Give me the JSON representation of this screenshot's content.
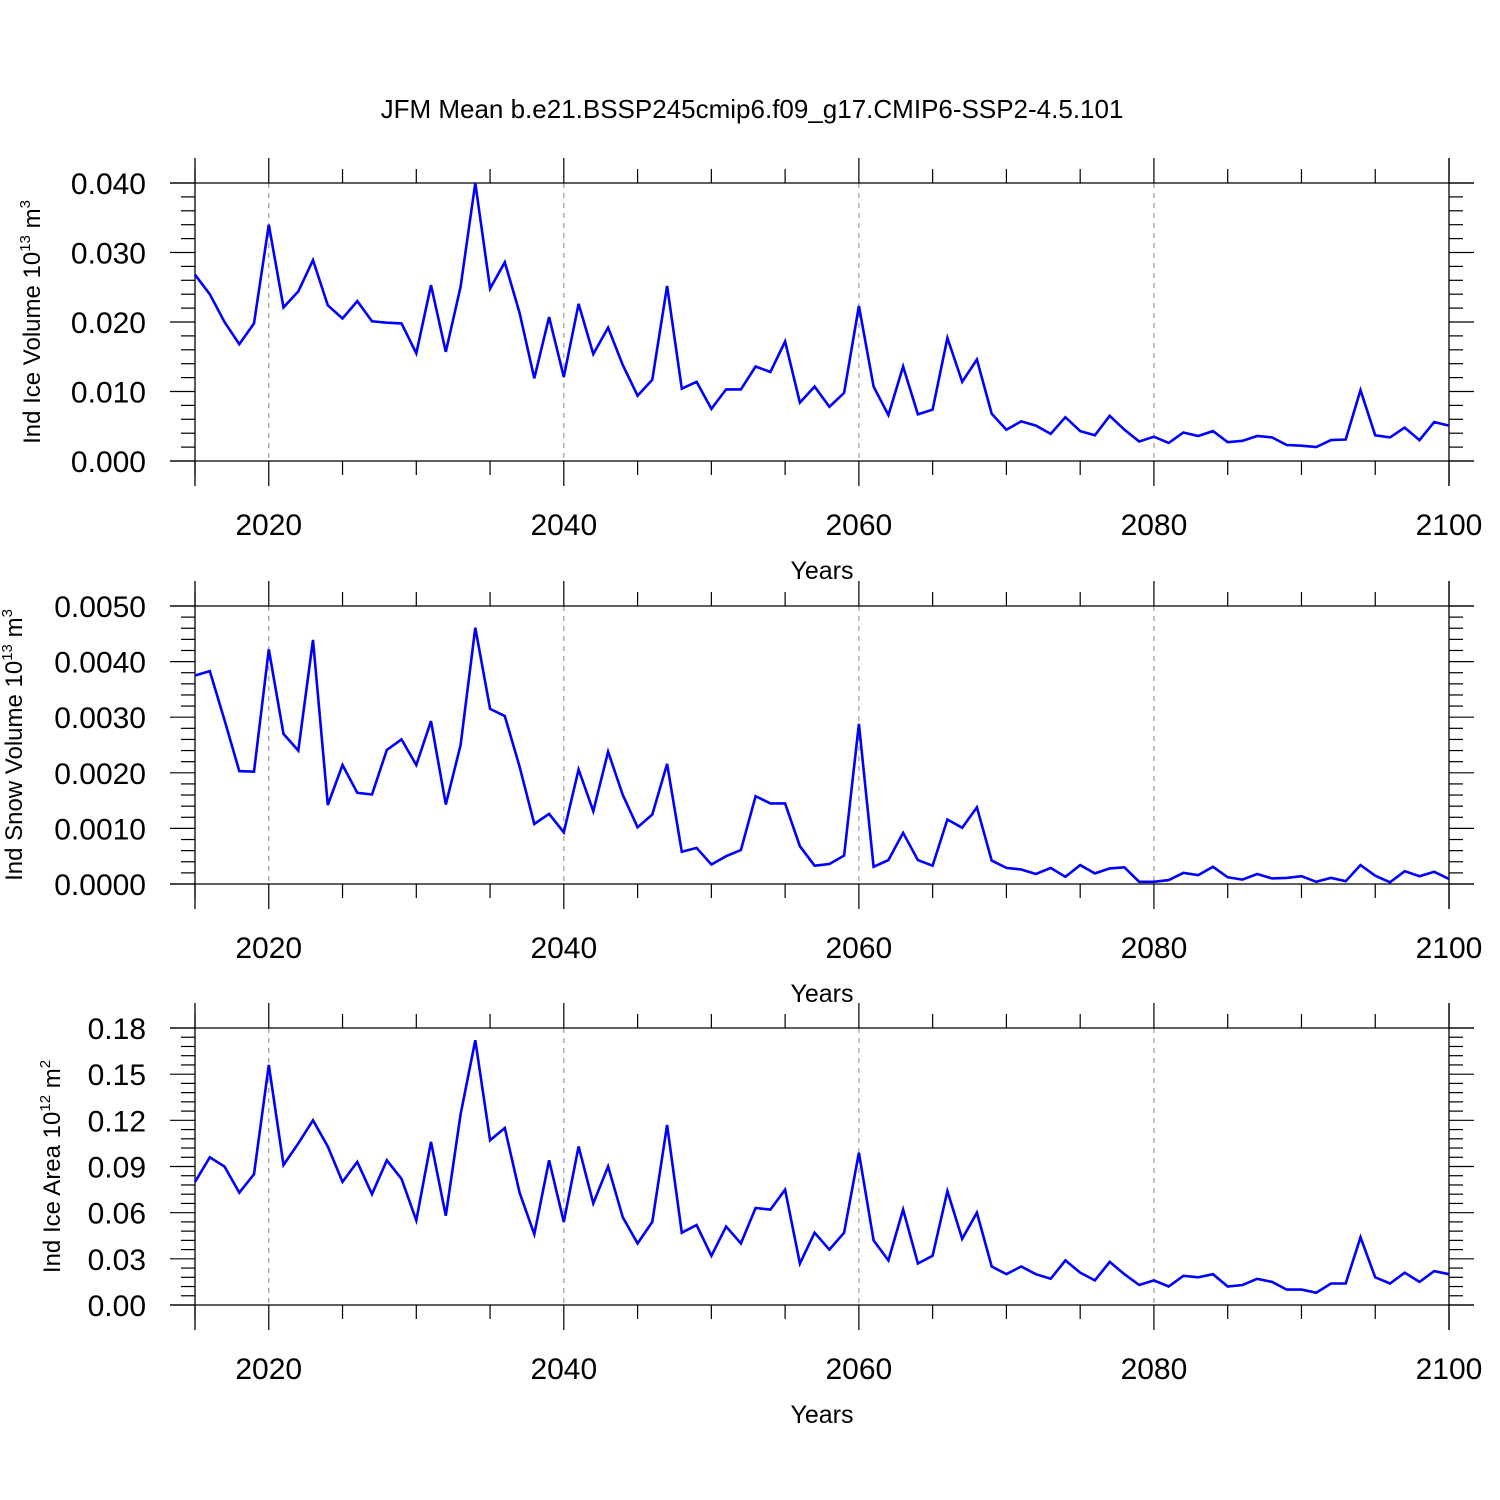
{
  "title": "JFM Mean b.e21.BSSP245cmip6.f09_g17.CMIP6-SSP2-4.5.101",
  "colors": {
    "line": "#0000ff",
    "axis": "#000000",
    "grid": "#999999"
  },
  "chart_data": [
    {
      "type": "line",
      "xlabel": "Years",
      "ylabel": {
        "text": "Ind Ice Volume 10",
        "sup": "13",
        "unit": " m",
        "unit_sup": "3"
      },
      "xlim": [
        2015,
        2100
      ],
      "ylim": [
        0,
        0.04
      ],
      "grid": "dashed vertical lines at 2020, 2040, 2060, 2080",
      "x_ticks": [
        "2020",
        "2040",
        "2060",
        "2080",
        "2100"
      ],
      "y_ticks": [
        "0.000",
        "0.010",
        "0.020",
        "0.030",
        "0.040"
      ],
      "y_tick_values": [
        0,
        0.01,
        0.02,
        0.03,
        0.04
      ],
      "x": [
        2015,
        2016,
        2017,
        2018,
        2019,
        2020,
        2021,
        2022,
        2023,
        2024,
        2025,
        2026,
        2027,
        2028,
        2029,
        2030,
        2031,
        2032,
        2033,
        2034,
        2035,
        2036,
        2037,
        2038,
        2039,
        2040,
        2041,
        2042,
        2043,
        2044,
        2045,
        2046,
        2047,
        2048,
        2049,
        2050,
        2051,
        2052,
        2053,
        2054,
        2055,
        2056,
        2057,
        2058,
        2059,
        2060,
        2061,
        2062,
        2063,
        2064,
        2065,
        2066,
        2067,
        2068,
        2069,
        2070,
        2071,
        2072,
        2073,
        2074,
        2075,
        2076,
        2077,
        2078,
        2079,
        2080,
        2081,
        2082,
        2083,
        2084,
        2085,
        2086,
        2087,
        2088,
        2089,
        2090,
        2091,
        2092,
        2093,
        2094,
        2095,
        2096,
        2097,
        2098,
        2099,
        2100
      ],
      "series": [
        {
          "values": [
            0.0268,
            0.024,
            0.02,
            0.0168,
            0.0198,
            0.034,
            0.0221,
            0.0244,
            0.0289,
            0.0224,
            0.0205,
            0.023,
            0.0201,
            0.0199,
            0.0198,
            0.0155,
            0.0253,
            0.0157,
            0.0251,
            0.04,
            0.0248,
            0.0286,
            0.0213,
            0.0119,
            0.0207,
            0.0121,
            0.0226,
            0.0154,
            0.0192,
            0.0138,
            0.0094,
            0.0117,
            0.0252,
            0.0104,
            0.0114,
            0.0075,
            0.0103,
            0.0103,
            0.0136,
            0.0128,
            0.0172,
            0.0084,
            0.0107,
            0.0078,
            0.0098,
            0.0223,
            0.0107,
            0.0066,
            0.0136,
            0.0067,
            0.0074,
            0.0177,
            0.0114,
            0.0146,
            0.0068,
            0.0045,
            0.0057,
            0.0051,
            0.0039,
            0.0063,
            0.0043,
            0.0037,
            0.0065,
            0.0045,
            0.0028,
            0.0035,
            0.0026,
            0.0041,
            0.0036,
            0.0043,
            0.0027,
            0.0029,
            0.0036,
            0.0034,
            0.0023,
            0.0022,
            0.002,
            0.003,
            0.0031,
            0.0102,
            0.0037,
            0.0034,
            0.0048,
            0.003,
            0.0056,
            0.0051
          ]
        }
      ]
    },
    {
      "type": "line",
      "xlabel": "Years",
      "ylabel": {
        "text": "Ind Snow Volume 10",
        "sup": "13",
        "unit": " m",
        "unit_sup": "3"
      },
      "xlim": [
        2015,
        2100
      ],
      "ylim": [
        0,
        0.005
      ],
      "grid": "dashed vertical lines at 2020, 2040, 2060, 2080",
      "x_ticks": [
        "2020",
        "2040",
        "2060",
        "2080",
        "2100"
      ],
      "y_ticks": [
        "0.0000",
        "0.0010",
        "0.0020",
        "0.0030",
        "0.0040",
        "0.0050"
      ],
      "y_tick_values": [
        0,
        0.001,
        0.002,
        0.003,
        0.004,
        0.005
      ],
      "x": [
        2015,
        2016,
        2017,
        2018,
        2019,
        2020,
        2021,
        2022,
        2023,
        2024,
        2025,
        2026,
        2027,
        2028,
        2029,
        2030,
        2031,
        2032,
        2033,
        2034,
        2035,
        2036,
        2037,
        2038,
        2039,
        2040,
        2041,
        2042,
        2043,
        2044,
        2045,
        2046,
        2047,
        2048,
        2049,
        2050,
        2051,
        2052,
        2053,
        2054,
        2055,
        2056,
        2057,
        2058,
        2059,
        2060,
        2061,
        2062,
        2063,
        2064,
        2065,
        2066,
        2067,
        2068,
        2069,
        2070,
        2071,
        2072,
        2073,
        2074,
        2075,
        2076,
        2077,
        2078,
        2079,
        2080,
        2081,
        2082,
        2083,
        2084,
        2085,
        2086,
        2087,
        2088,
        2089,
        2090,
        2091,
        2092,
        2093,
        2094,
        2095,
        2096,
        2097,
        2098,
        2099,
        2100
      ],
      "series": [
        {
          "values": [
            0.00375,
            0.00383,
            0.00295,
            0.00203,
            0.00202,
            0.00422,
            0.0027,
            0.0024,
            0.00439,
            0.00142,
            0.00214,
            0.00164,
            0.00161,
            0.00241,
            0.0026,
            0.00214,
            0.00293,
            0.00143,
            0.0025,
            0.00461,
            0.00315,
            0.00302,
            0.00211,
            0.00108,
            0.00126,
            0.00093,
            0.00206,
            0.00131,
            0.00238,
            0.0016,
            0.00102,
            0.00125,
            0.00216,
            0.00058,
            0.00065,
            0.00035,
            0.0005,
            0.00061,
            0.00158,
            0.00145,
            0.00145,
            0.00068,
            0.00033,
            0.00036,
            0.00051,
            0.00288,
            0.00031,
            0.00043,
            0.00092,
            0.00043,
            0.00033,
            0.00116,
            0.00101,
            0.00138,
            0.00042,
            0.00029,
            0.00026,
            0.00018,
            0.00029,
            0.00013,
            0.00034,
            0.00019,
            0.00028,
            0.0003,
            4e-05,
            4e-05,
            7e-05,
            0.0002,
            0.00016,
            0.00031,
            0.00012,
            8e-05,
            0.00018,
            0.0001,
            0.00011,
            0.00014,
            4e-05,
            0.00011,
            5e-05,
            0.00034,
            0.00015,
            3e-05,
            0.00023,
            0.00014,
            0.00022,
            9e-05
          ]
        }
      ]
    },
    {
      "type": "line",
      "xlabel": "Years",
      "ylabel": {
        "text": "Ind Ice Area 10",
        "sup": "12",
        "unit": " m",
        "unit_sup": "2"
      },
      "xlim": [
        2015,
        2100
      ],
      "ylim": [
        0,
        0.18
      ],
      "grid": "dashed vertical lines at 2020, 2040, 2060, 2080",
      "x_ticks": [
        "2020",
        "2040",
        "2060",
        "2080",
        "2100"
      ],
      "y_ticks": [
        "0.00",
        "0.03",
        "0.06",
        "0.09",
        "0.12",
        "0.15",
        "0.18"
      ],
      "y_tick_values": [
        0,
        0.03,
        0.06,
        0.09,
        0.12,
        0.15,
        0.18
      ],
      "x": [
        2015,
        2016,
        2017,
        2018,
        2019,
        2020,
        2021,
        2022,
        2023,
        2024,
        2025,
        2026,
        2027,
        2028,
        2029,
        2030,
        2031,
        2032,
        2033,
        2034,
        2035,
        2036,
        2037,
        2038,
        2039,
        2040,
        2041,
        2042,
        2043,
        2044,
        2045,
        2046,
        2047,
        2048,
        2049,
        2050,
        2051,
        2052,
        2053,
        2054,
        2055,
        2056,
        2057,
        2058,
        2059,
        2060,
        2061,
        2062,
        2063,
        2064,
        2065,
        2066,
        2067,
        2068,
        2069,
        2070,
        2071,
        2072,
        2073,
        2074,
        2075,
        2076,
        2077,
        2078,
        2079,
        2080,
        2081,
        2082,
        2083,
        2084,
        2085,
        2086,
        2087,
        2088,
        2089,
        2090,
        2091,
        2092,
        2093,
        2094,
        2095,
        2096,
        2097,
        2098,
        2099,
        2100
      ],
      "series": [
        {
          "values": [
            0.08,
            0.096,
            0.09,
            0.073,
            0.085,
            0.156,
            0.091,
            0.105,
            0.12,
            0.103,
            0.08,
            0.093,
            0.072,
            0.094,
            0.082,
            0.055,
            0.106,
            0.058,
            0.124,
            0.172,
            0.107,
            0.115,
            0.073,
            0.046,
            0.094,
            0.054,
            0.103,
            0.066,
            0.09,
            0.057,
            0.04,
            0.054,
            0.117,
            0.047,
            0.052,
            0.032,
            0.051,
            0.04,
            0.063,
            0.062,
            0.075,
            0.027,
            0.047,
            0.036,
            0.047,
            0.099,
            0.042,
            0.029,
            0.062,
            0.027,
            0.032,
            0.074,
            0.043,
            0.06,
            0.025,
            0.02,
            0.025,
            0.02,
            0.017,
            0.029,
            0.021,
            0.016,
            0.028,
            0.02,
            0.013,
            0.016,
            0.012,
            0.019,
            0.018,
            0.02,
            0.012,
            0.013,
            0.017,
            0.015,
            0.01,
            0.01,
            0.008,
            0.014,
            0.014,
            0.044,
            0.018,
            0.014,
            0.021,
            0.015,
            0.022,
            0.02
          ]
        }
      ]
    }
  ]
}
